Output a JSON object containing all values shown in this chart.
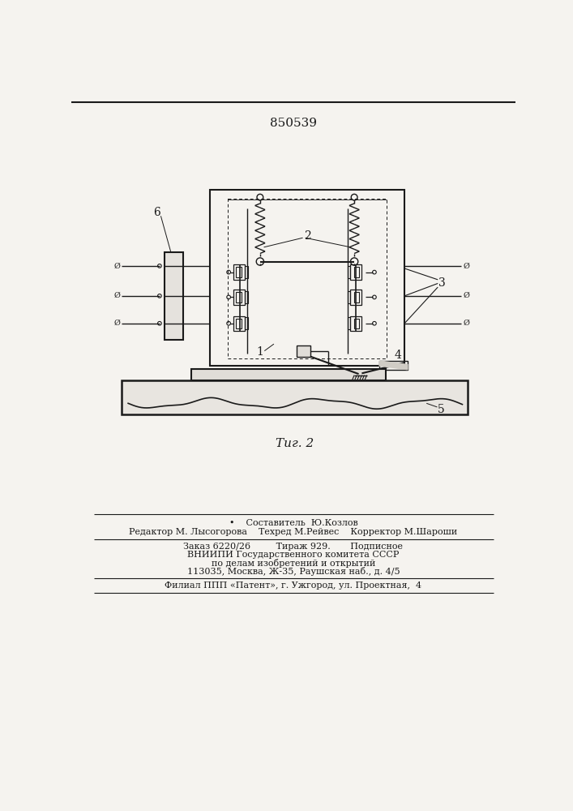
{
  "patent_number": "850539",
  "fig_label": "Τиг. 2",
  "bg_color": "#f5f3ef",
  "line_color": "#1a1a1a",
  "footer_lines": [
    "•    Составитель  Ю.Козлов",
    "Редактор М. Лысогорова    Техред М.Рейвес    Корректор М.Шароши",
    "Заказ 6220/26         Тираж 929.       Подписное",
    "ВНИИПИ Государственного комитета СССР",
    "по делам изобретений и открытий",
    "113035, Москва, Ж-35, Раушская наб., д. 4/5",
    "Филиал ППП «Патент», г. Ужгород, ул. Проектная,  4"
  ]
}
